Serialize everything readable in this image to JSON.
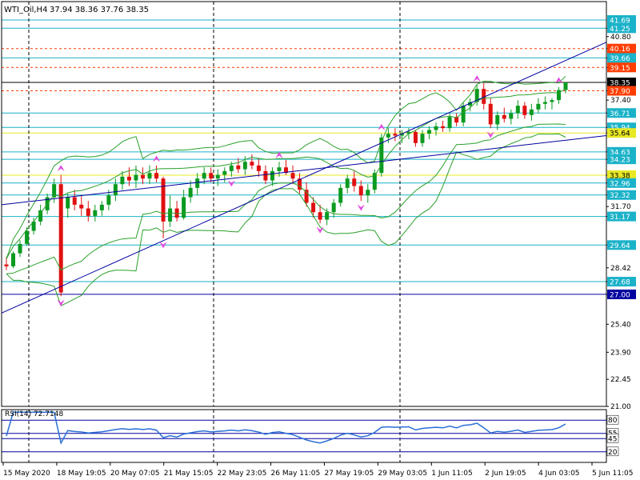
{
  "header": {
    "symbol": "WTI_Oil,H4",
    "ohlc": "37.94 38.36 37.76 38.35"
  },
  "indicator": {
    "label": "RSI(14) 72.7148"
  },
  "colors": {
    "bull": "#0a9a1f",
    "bear": "#e01010",
    "teal": "#1ab2c9",
    "band": "#2aa02a",
    "channel": "#0000a0",
    "red_dash": "#e02020",
    "arrow": "#e24adf",
    "last_price": "#000000",
    "level_red": "#ff3d00",
    "level_yellow": "#e8e826"
  },
  "chart_data": {
    "type": "candlestick",
    "ylim": [
      21.0,
      41.69
    ],
    "y_ticks": [
      "41.25",
      "40.80",
      "40.16",
      "39.66",
      "39.15",
      "37.90",
      "37.40",
      "36.71",
      "35.94",
      "35.64",
      "34.63",
      "34.23",
      "33.38",
      "32.96",
      "32.32",
      "31.70",
      "31.17",
      "29.64",
      "28.42",
      "27.68",
      "27.00",
      "25.40",
      "23.90",
      "22.45",
      "21.00"
    ],
    "price_levels": [
      {
        "label": "41.69",
        "value": 41.69,
        "color": "teal"
      },
      {
        "label": "41.25",
        "value": 41.25,
        "color": "teal"
      },
      {
        "label": "40.16",
        "value": 40.16,
        "color": "level_red",
        "dash": true
      },
      {
        "label": "39.66",
        "value": 39.66,
        "color": "teal"
      },
      {
        "label": "39.15",
        "value": 39.15,
        "color": "level_red",
        "dash": true
      },
      {
        "label": "38.35",
        "value": 38.35,
        "color": "last_price"
      },
      {
        "label": "37.90",
        "value": 37.9,
        "color": "level_red",
        "dash": true
      },
      {
        "label": "36.71",
        "value": 36.71,
        "color": "teal"
      },
      {
        "label": "35.94",
        "value": 35.94,
        "color": "teal"
      },
      {
        "label": "35.64",
        "value": 35.64,
        "color": "level_yellow"
      },
      {
        "label": "34.63",
        "value": 34.63,
        "color": "teal"
      },
      {
        "label": "34.23",
        "value": 34.23,
        "color": "teal"
      },
      {
        "label": "33.38",
        "value": 33.38,
        "color": "level_yellow"
      },
      {
        "label": "32.96",
        "value": 32.96,
        "color": "teal"
      },
      {
        "label": "32.32",
        "value": 32.32,
        "color": "teal"
      },
      {
        "label": "31.17",
        "value": 31.17,
        "color": "teal"
      },
      {
        "label": "29.64",
        "value": 29.64,
        "color": "teal"
      },
      {
        "label": "27.68",
        "value": 27.68,
        "color": "teal"
      },
      {
        "label": "27.00",
        "value": 27.0,
        "color": "channel"
      }
    ],
    "x_labels": [
      "15 May 2020",
      "18 May 19:05",
      "20 May 07:05",
      "21 May 15:05",
      "22 May 23:05",
      "26 May 11:05",
      "27 May 19:05",
      "29 May 03:05",
      "1 Jun 11:05",
      "2 Jun 19:05",
      "4 Jun 03:05",
      "5 Jun 11:05"
    ],
    "candles": [
      [
        28.6,
        29.0,
        28.3,
        28.5
      ],
      [
        28.5,
        29.3,
        28.4,
        29.2
      ],
      [
        29.2,
        29.9,
        29.0,
        29.7
      ],
      [
        29.7,
        30.6,
        29.6,
        30.4
      ],
      [
        30.4,
        31.1,
        30.2,
        30.9
      ],
      [
        30.9,
        31.8,
        30.7,
        31.5
      ],
      [
        31.5,
        32.4,
        31.3,
        32.2
      ],
      [
        32.2,
        33.2,
        31.9,
        32.9
      ],
      [
        32.9,
        33.4,
        26.9,
        27.1
      ],
      [
        31.6,
        32.4,
        31.1,
        32.2
      ],
      [
        32.2,
        32.6,
        31.5,
        31.8
      ],
      [
        31.8,
        32.3,
        31.2,
        31.6
      ],
      [
        31.6,
        32.0,
        30.9,
        31.2
      ],
      [
        31.2,
        31.8,
        30.9,
        31.5
      ],
      [
        31.5,
        32.0,
        31.2,
        31.8
      ],
      [
        31.8,
        32.6,
        31.5,
        32.3
      ],
      [
        32.3,
        33.2,
        32.0,
        32.9
      ],
      [
        32.9,
        33.6,
        32.6,
        33.3
      ],
      [
        33.3,
        33.8,
        32.8,
        33.1
      ],
      [
        33.1,
        33.9,
        32.7,
        33.4
      ],
      [
        33.4,
        33.8,
        32.9,
        33.2
      ],
      [
        33.2,
        33.9,
        32.9,
        33.5
      ],
      [
        33.5,
        33.9,
        33.0,
        33.2
      ],
      [
        33.2,
        33.3,
        30.0,
        30.9
      ],
      [
        30.9,
        32.3,
        30.6,
        31.6
      ],
      [
        31.6,
        32.0,
        30.9,
        31.1
      ],
      [
        31.1,
        32.6,
        31.0,
        32.2
      ],
      [
        32.2,
        33.1,
        31.9,
        32.7
      ],
      [
        32.7,
        33.5,
        32.3,
        33.2
      ],
      [
        33.2,
        33.8,
        32.9,
        33.5
      ],
      [
        33.5,
        33.8,
        33.0,
        33.2
      ],
      [
        33.2,
        33.7,
        32.8,
        33.4
      ],
      [
        33.4,
        33.8,
        33.0,
        33.6
      ],
      [
        33.6,
        34.1,
        33.3,
        33.9
      ],
      [
        33.9,
        34.3,
        33.5,
        33.7
      ],
      [
        33.7,
        34.4,
        33.4,
        34.1
      ],
      [
        34.1,
        34.5,
        33.7,
        33.9
      ],
      [
        33.9,
        34.3,
        33.3,
        33.6
      ],
      [
        33.6,
        33.9,
        32.9,
        33.1
      ],
      [
        33.1,
        33.8,
        32.8,
        33.6
      ],
      [
        33.6,
        34.1,
        33.3,
        33.8
      ],
      [
        33.8,
        34.2,
        33.4,
        33.5
      ],
      [
        33.5,
        33.9,
        32.9,
        33.2
      ],
      [
        33.2,
        33.5,
        32.4,
        32.6
      ],
      [
        32.6,
        33.0,
        31.7,
        31.9
      ],
      [
        31.9,
        32.2,
        31.1,
        31.4
      ],
      [
        31.4,
        31.8,
        30.8,
        31.0
      ],
      [
        31.0,
        31.6,
        30.7,
        31.4
      ],
      [
        31.4,
        32.1,
        31.1,
        31.9
      ],
      [
        31.9,
        32.9,
        31.7,
        32.7
      ],
      [
        32.7,
        33.4,
        32.4,
        33.2
      ],
      [
        33.2,
        33.6,
        32.5,
        32.8
      ],
      [
        32.8,
        33.1,
        32.0,
        32.3
      ],
      [
        32.3,
        32.9,
        31.9,
        32.6
      ],
      [
        32.6,
        33.7,
        32.4,
        33.5
      ],
      [
        33.5,
        35.6,
        33.3,
        35.4
      ],
      [
        35.4,
        35.9,
        35.1,
        35.6
      ],
      [
        35.6,
        35.9,
        35.2,
        35.5
      ],
      [
        35.5,
        35.8,
        35.1,
        35.6
      ],
      [
        35.6,
        35.9,
        35.3,
        35.7
      ],
      [
        35.7,
        35.8,
        34.9,
        35.1
      ],
      [
        35.1,
        35.8,
        34.9,
        35.6
      ],
      [
        35.6,
        36.0,
        35.3,
        35.8
      ],
      [
        35.8,
        36.2,
        35.5,
        36.0
      ],
      [
        36.0,
        36.3,
        35.7,
        35.9
      ],
      [
        35.9,
        36.7,
        35.7,
        36.5
      ],
      [
        36.5,
        36.7,
        36.0,
        36.2
      ],
      [
        36.2,
        37.3,
        36.0,
        37.1
      ],
      [
        37.1,
        37.5,
        36.8,
        37.3
      ],
      [
        37.3,
        38.2,
        37.1,
        38.0
      ],
      [
        38.0,
        38.3,
        36.9,
        37.2
      ],
      [
        37.2,
        37.5,
        35.9,
        36.1
      ],
      [
        36.1,
        36.8,
        35.8,
        36.6
      ],
      [
        36.6,
        37.0,
        36.2,
        36.4
      ],
      [
        36.4,
        36.9,
        36.1,
        36.7
      ],
      [
        36.7,
        37.4,
        36.4,
        37.1
      ],
      [
        37.1,
        37.3,
        36.4,
        36.6
      ],
      [
        36.6,
        37.2,
        36.3,
        36.9
      ],
      [
        36.9,
        37.5,
        36.7,
        37.2
      ],
      [
        37.2,
        37.6,
        36.9,
        37.3
      ],
      [
        37.3,
        37.5,
        36.9,
        37.4
      ],
      [
        37.4,
        38.1,
        37.2,
        37.94
      ],
      [
        37.94,
        38.36,
        37.76,
        38.35
      ]
    ],
    "indicator_rsi": {
      "ylim": [
        0,
        100
      ],
      "levels": [
        80,
        55,
        45,
        20
      ],
      "last": 72.7148
    }
  }
}
